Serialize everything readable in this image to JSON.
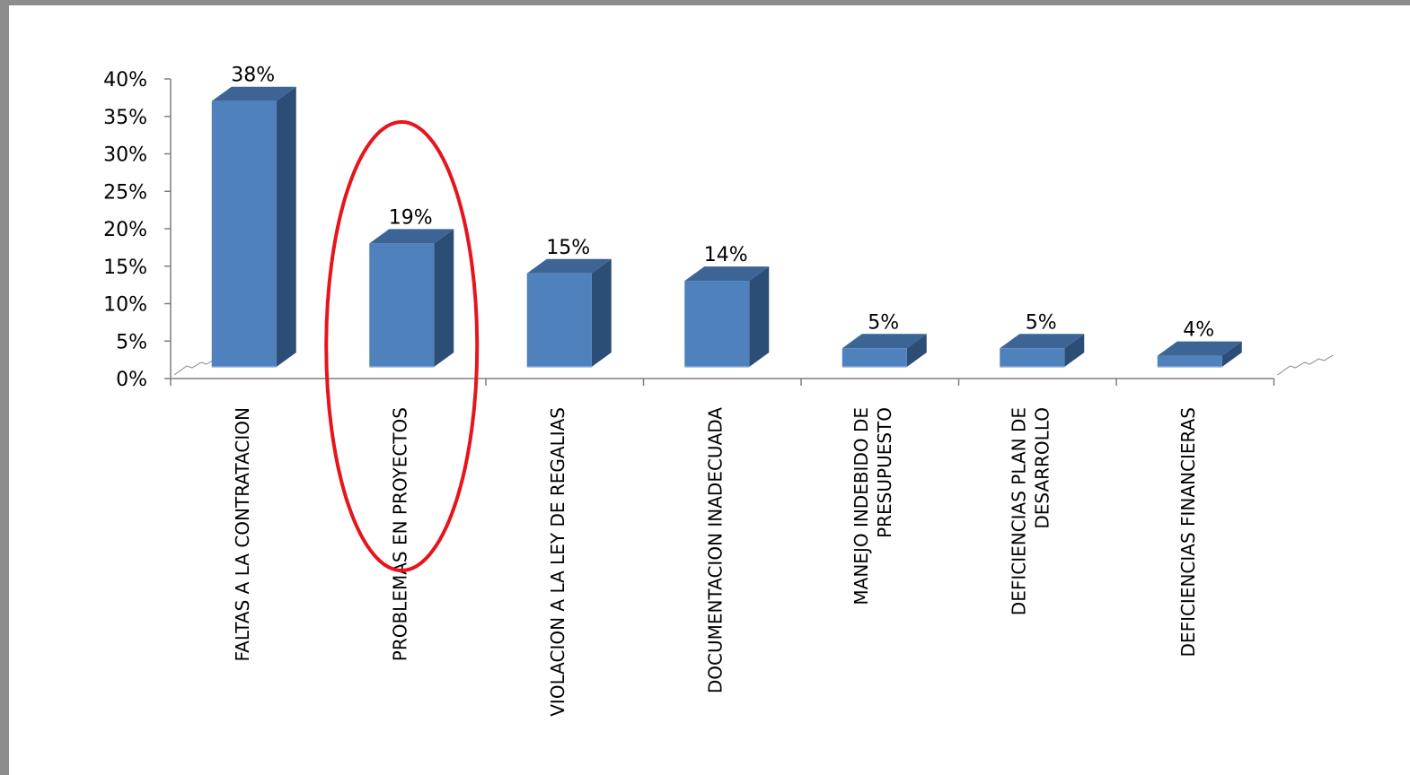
{
  "chart_data": {
    "type": "bar",
    "title": "",
    "xlabel": "",
    "ylabel": "",
    "ylim": [
      0,
      40
    ],
    "yticks": [
      "0%",
      "5%",
      "10%",
      "15%",
      "20%",
      "25%",
      "30%",
      "35%",
      "40%"
    ],
    "categories": [
      [
        "FALTAS A LA CONTRATACION"
      ],
      [
        "PROBLEMAS EN PROYECTOS"
      ],
      [
        "VIOLACION A LA LEY DE REGALIAS"
      ],
      [
        "DOCUMENTACION INADECUADA"
      ],
      [
        "MANEJO INDEBIDO  DE",
        "PRESUPUESTO"
      ],
      [
        "DEFICIENCIAS  PLAN DE",
        "DESARROLLO"
      ],
      [
        "DEFICIENCIAS  FINANCIERAS"
      ]
    ],
    "values": [
      38,
      19,
      15,
      14,
      5,
      5,
      4
    ],
    "data_labels": [
      "38%",
      "19%",
      "15%",
      "14%",
      "5%",
      "5%",
      "4%"
    ],
    "bar_style": "3d",
    "grid": false,
    "highlight": {
      "category_index": 1,
      "shape": "ellipse",
      "color": "#e8141c"
    },
    "colors": {
      "bar_front": "#4f81bd",
      "bar_side": "#2c4d75",
      "bar_top": "#3c6596"
    }
  }
}
